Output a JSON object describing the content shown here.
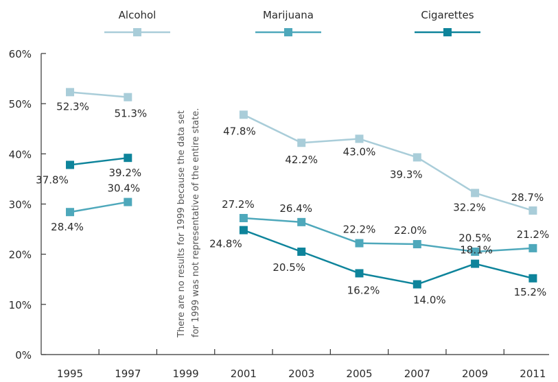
{
  "chart_data": {
    "type": "line",
    "title": "",
    "xlabel": "",
    "ylabel": "",
    "categories": [
      "1995",
      "1997",
      "1999",
      "2001",
      "2003",
      "2005",
      "2007",
      "2009",
      "2011"
    ],
    "y_ticks": [
      "0%",
      "10%",
      "20%",
      "30%",
      "40%",
      "50%",
      "60%"
    ],
    "ylim": [
      0,
      60
    ],
    "grid": false,
    "legend_position": "top",
    "series": [
      {
        "name": "Alcohol",
        "color": "#a9cdd9",
        "values": [
          52.3,
          51.3,
          null,
          47.8,
          42.2,
          43.0,
          39.3,
          32.2,
          28.7
        ],
        "labels": [
          "52.3%",
          "51.3%",
          null,
          "47.8%",
          "42.2%",
          "43.0%",
          "39.3%",
          "32.2%",
          "28.7%"
        ]
      },
      {
        "name": "Marijuana",
        "color": "#4ea8bb",
        "values": [
          28.4,
          30.4,
          null,
          27.2,
          26.4,
          22.2,
          22.0,
          20.5,
          21.2
        ],
        "labels": [
          "28.4%",
          "30.4%",
          null,
          "27.2%",
          "26.4%",
          "22.2%",
          "22.0%",
          "20.5%",
          "21.2%"
        ]
      },
      {
        "name": "Cigarettes",
        "color": "#0e849b",
        "values": [
          37.8,
          39.2,
          null,
          24.8,
          20.5,
          16.2,
          14.0,
          18.1,
          15.2
        ],
        "labels": [
          "37.8%",
          "39.2%",
          null,
          "24.8%",
          "20.5%",
          "16.2%",
          "14.0%",
          "18.1%",
          "15.2%"
        ]
      }
    ],
    "annotation": {
      "line1": "There are no results for 1999 because the data set",
      "line2": "for 1999 was not representative of the entire state."
    }
  }
}
